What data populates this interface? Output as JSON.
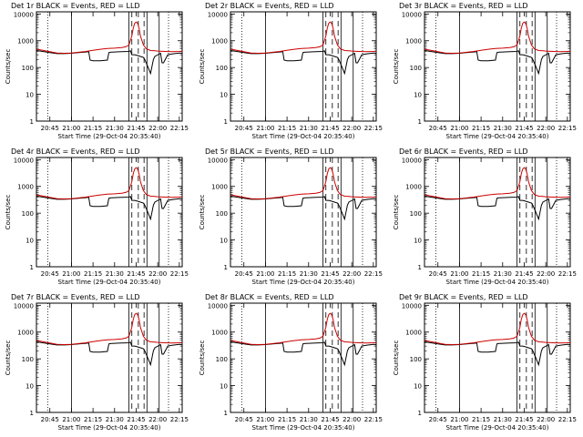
{
  "figure": {
    "ylabel": "Counts/sec",
    "xlabel": "Start Time (29-Oct-04 20:35:40)",
    "colors": {
      "events": "#000000",
      "lld": "#cc0000",
      "background": "#ffffff"
    }
  },
  "chart_data": [
    {
      "type": "line",
      "title": "Det 1r BLACK = Events, RED = LLD"
    },
    {
      "type": "line",
      "title": "Det 2r BLACK = Events, RED = LLD"
    },
    {
      "type": "line",
      "title": "Det 3r BLACK = Events, RED = LLD"
    },
    {
      "type": "line",
      "title": "Det 4r BLACK = Events, RED = LLD"
    },
    {
      "type": "line",
      "title": "Det 5r BLACK = Events, RED = LLD"
    },
    {
      "type": "line",
      "title": "Det 6r BLACK = Events, RED = LLD"
    },
    {
      "type": "line",
      "title": "Det 7r BLACK = Events, RED = LLD"
    },
    {
      "type": "line",
      "title": "Det 8r BLACK = Events, RED = LLD"
    },
    {
      "type": "line",
      "title": "Det 9r BLACK = Events, RED = LLD"
    }
  ],
  "shared_axes": {
    "x_ticks": [
      "20:45",
      "21:00",
      "21:15",
      "21:30",
      "21:45",
      "22:00",
      "22:15"
    ],
    "x_tick_minutes": [
      45,
      60,
      75,
      90,
      105,
      120,
      135
    ],
    "xlim_minutes": [
      35.67,
      137
    ],
    "y_ticks": [
      "1",
      "10",
      "100",
      "1000",
      "10000"
    ],
    "y_tick_values": [
      1,
      10,
      100,
      1000,
      10000
    ],
    "ylim": [
      1,
      12000
    ],
    "yscale": "log",
    "vlines_dotted_minutes": [
      43.5,
      127.5
    ],
    "vlines_dashed_minutes": [
      102,
      106.5,
      110.5
    ],
    "events_series": {
      "name": "Events",
      "x_minutes": [
        36,
        40,
        45,
        50,
        55,
        60,
        65,
        70,
        72,
        73,
        75,
        80,
        85,
        86,
        87,
        88,
        90,
        95,
        100,
        101,
        102,
        104,
        106,
        108,
        110,
        111,
        112,
        115,
        117,
        118,
        122,
        123,
        124,
        127,
        130,
        135,
        137
      ],
      "y": [
        430,
        400,
        360,
        330,
        330,
        340,
        360,
        380,
        390,
        190,
        180,
        180,
        190,
        360,
        370,
        375,
        380,
        390,
        400,
        420,
        300,
        300,
        280,
        260,
        240,
        200,
        150,
        60,
        200,
        260,
        340,
        150,
        150,
        300,
        320,
        350,
        340
      ]
    },
    "lld_series": {
      "name": "LLD",
      "x_minutes": [
        36,
        40,
        45,
        50,
        55,
        60,
        65,
        70,
        75,
        80,
        85,
        90,
        95,
        98,
        100,
        102,
        103,
        104,
        105,
        106,
        107,
        108,
        110,
        112,
        115,
        118,
        120,
        125,
        130,
        135,
        137
      ],
      "y": [
        480,
        440,
        390,
        350,
        340,
        350,
        370,
        400,
        440,
        480,
        510,
        530,
        560,
        600,
        700,
        1500,
        3000,
        4500,
        5000,
        4500,
        3000,
        1500,
        700,
        500,
        430,
        420,
        410,
        400,
        390,
        400,
        410
      ]
    }
  }
}
